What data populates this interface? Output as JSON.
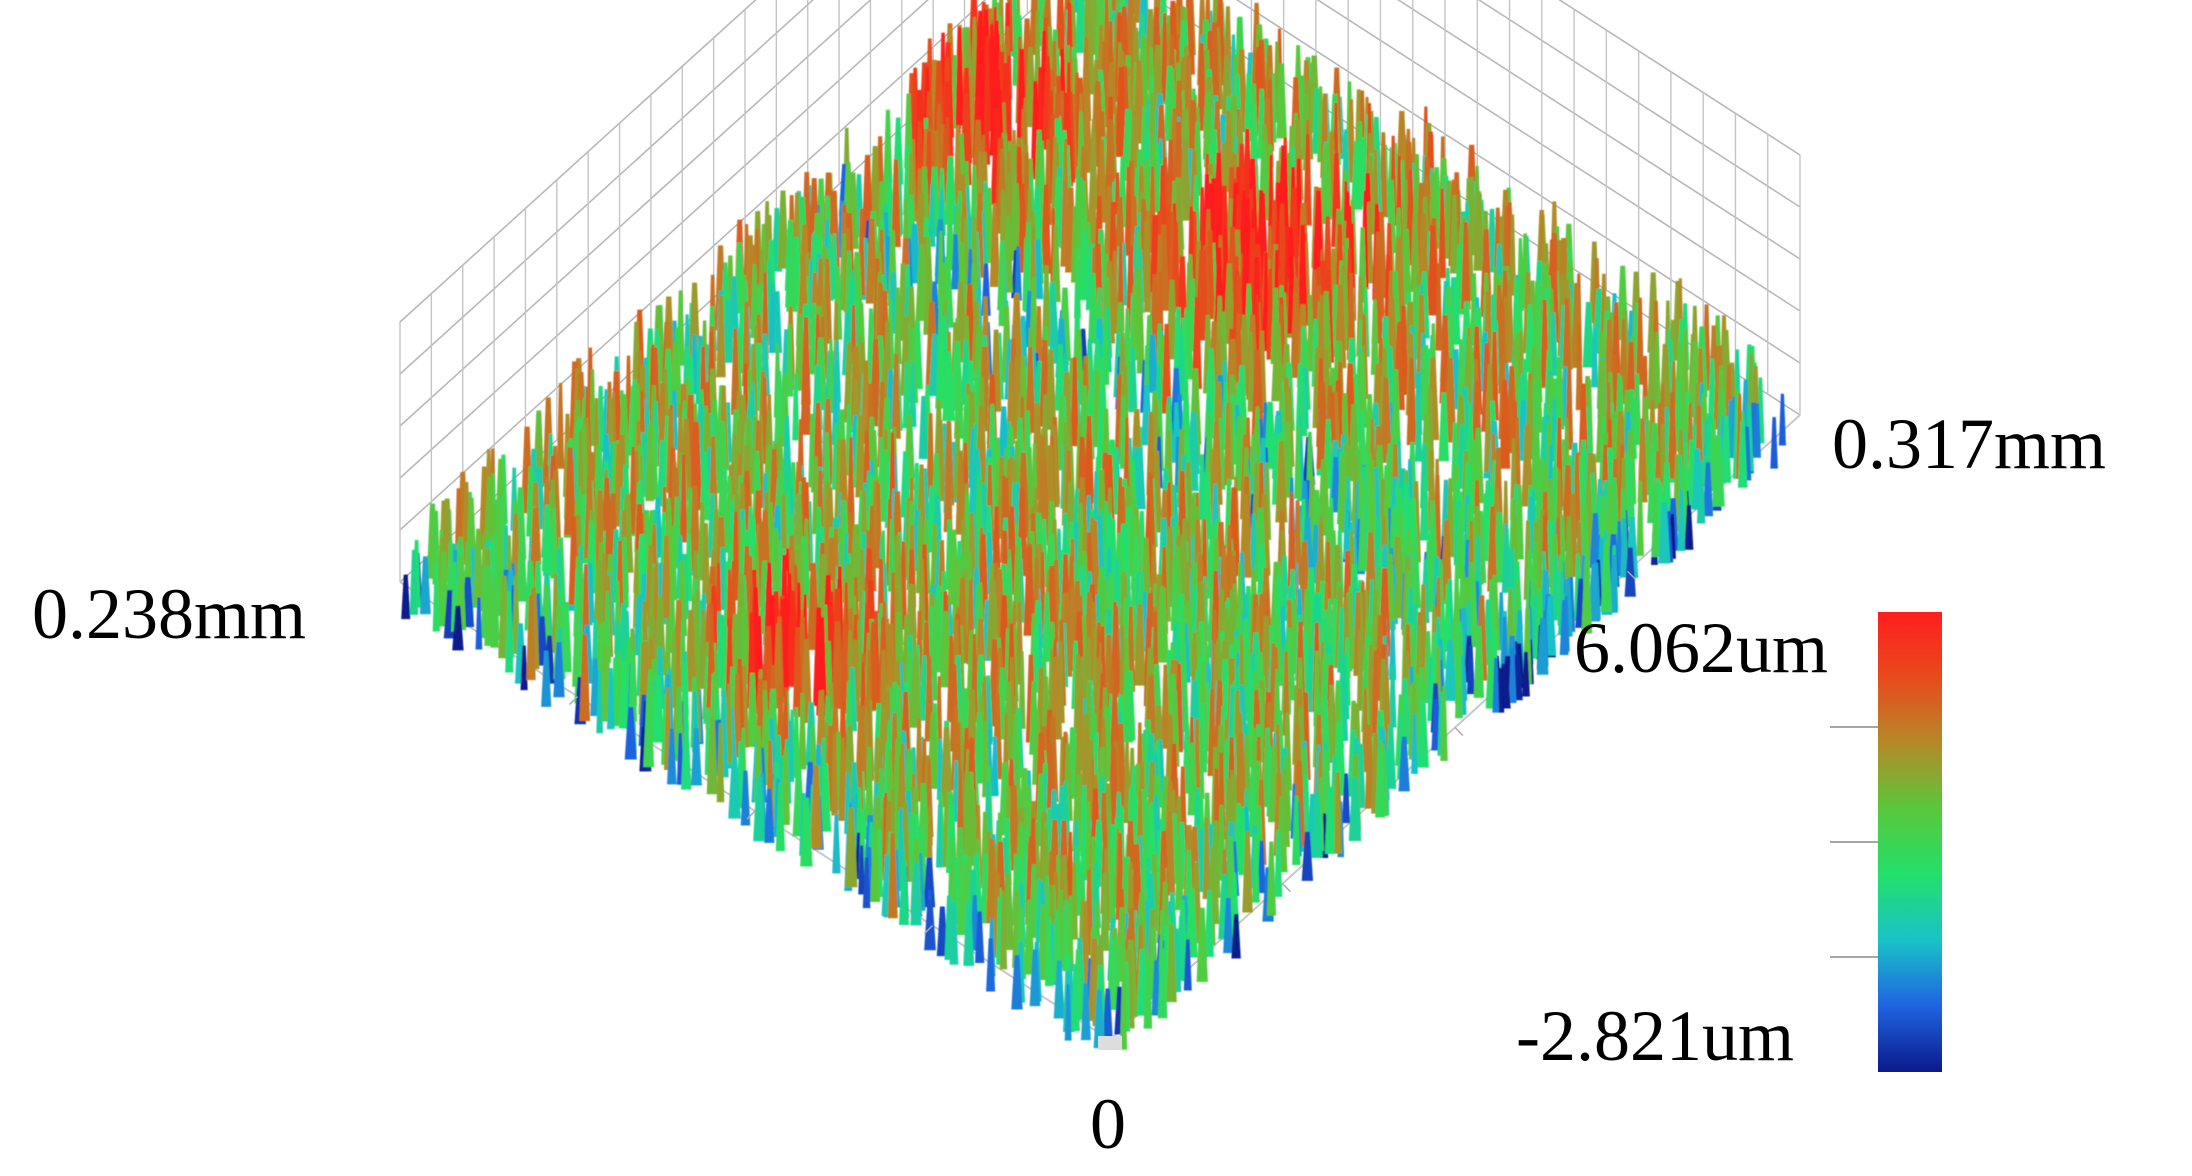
{
  "chart_data": {
    "type": "heatmap",
    "subtype": "3d-surface-profile",
    "title": "",
    "axes": {
      "x_extent_label": "0.317mm",
      "y_extent_label": "0.238mm",
      "origin_label": "0",
      "x_range_mm": [
        0,
        0.317
      ],
      "y_range_mm": [
        0,
        0.238
      ],
      "z_range_um": [
        -2.821,
        6.062
      ]
    },
    "colorbar": {
      "max_label": "6.062um",
      "min_label": "-2.821um",
      "min": -2.821,
      "max": 6.062,
      "colormap": [
        "#0a1a8c",
        "#1f63e0",
        "#19c2c8",
        "#22e06a",
        "#58c83c",
        "#b48a28",
        "#e84a1c",
        "#ff1e1e"
      ]
    },
    "grid": true,
    "legend": "colorbar-right"
  }
}
